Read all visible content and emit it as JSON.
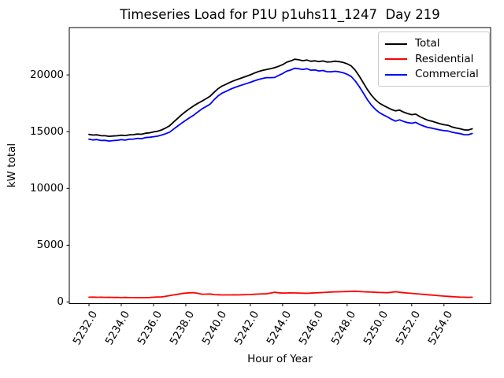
{
  "chart_data": {
    "type": "line",
    "title": "Timeseries Load for P1U p1uhs11_1247  Day 219",
    "xlabel": "Hour of Year",
    "ylabel": "kW total",
    "grid": false,
    "legend_position": "upper right",
    "xlim": [
      5230.78,
      5256.89
    ],
    "ylim": [
      -140,
      24170
    ],
    "xticks": {
      "values": [
        5232,
        5234,
        5236,
        5238,
        5240,
        5242,
        5244,
        5246,
        5248,
        5250,
        5252,
        5254
      ],
      "labels": [
        "5232.0",
        "5234.0",
        "5236.0",
        "5238.0",
        "5240.0",
        "5242.0",
        "5244.0",
        "5246.0",
        "5248.0",
        "5250.0",
        "5252.0",
        "5254.0"
      ]
    },
    "yticks": {
      "values": [
        0,
        5000,
        10000,
        15000,
        20000
      ],
      "labels": [
        "0",
        "5000",
        "10000",
        "15000",
        "20000"
      ]
    },
    "x": [
      5232,
      5232.25,
      5232.5,
      5232.75,
      5233,
      5233.25,
      5233.5,
      5233.75,
      5234,
      5234.25,
      5234.5,
      5234.75,
      5235,
      5235.25,
      5235.5,
      5235.75,
      5236,
      5236.25,
      5236.5,
      5236.75,
      5237,
      5237.25,
      5237.5,
      5237.75,
      5238,
      5238.25,
      5238.5,
      5238.75,
      5239,
      5239.25,
      5239.5,
      5239.75,
      5240,
      5240.25,
      5240.5,
      5240.75,
      5241,
      5241.25,
      5241.5,
      5241.75,
      5242,
      5242.25,
      5242.5,
      5242.75,
      5243,
      5243.25,
      5243.5,
      5243.75,
      5244,
      5244.25,
      5244.5,
      5244.75,
      5245,
      5245.25,
      5245.5,
      5245.75,
      5246,
      5246.25,
      5246.5,
      5246.75,
      5247,
      5247.25,
      5247.5,
      5247.75,
      5248,
      5248.25,
      5248.5,
      5248.75,
      5249,
      5249.25,
      5249.5,
      5249.75,
      5250,
      5250.25,
      5250.5,
      5250.75,
      5251,
      5251.25,
      5251.5,
      5251.75,
      5252,
      5252.25,
      5252.5,
      5252.75,
      5253,
      5253.25,
      5253.5,
      5253.75,
      5254,
      5254.25,
      5254.5,
      5254.75,
      5255,
      5255.25,
      5255.5,
      5255.75
    ],
    "series": [
      {
        "name": "Total",
        "color": "#000000",
        "values": [
          14760,
          14700,
          14720,
          14650,
          14640,
          14590,
          14620,
          14640,
          14690,
          14660,
          14720,
          14740,
          14790,
          14770,
          14860,
          14900,
          14980,
          15040,
          15150,
          15320,
          15520,
          15860,
          16180,
          16500,
          16780,
          17050,
          17290,
          17500,
          17690,
          17900,
          18120,
          18460,
          18790,
          19020,
          19180,
          19360,
          19500,
          19630,
          19760,
          19880,
          20010,
          20160,
          20290,
          20400,
          20480,
          20550,
          20630,
          20760,
          20900,
          21120,
          21230,
          21380,
          21330,
          21250,
          21310,
          21200,
          21240,
          21170,
          21230,
          21140,
          21150,
          21210,
          21170,
          21100,
          20980,
          20790,
          20420,
          19900,
          19310,
          18710,
          18210,
          17820,
          17510,
          17310,
          17120,
          16950,
          16830,
          16900,
          16720,
          16590,
          16500,
          16550,
          16330,
          16160,
          16010,
          15920,
          15810,
          15700,
          15610,
          15560,
          15420,
          15330,
          15260,
          15160,
          15140,
          15260
        ]
      },
      {
        "name": "Residential",
        "color": "#ff0000",
        "values": [
          420,
          430,
          415,
          425,
          405,
          415,
          400,
          405,
          390,
          400,
          385,
          390,
          378,
          388,
          382,
          395,
          420,
          435,
          450,
          500,
          560,
          620,
          680,
          740,
          780,
          810,
          825,
          760,
          685,
          690,
          705,
          650,
          640,
          625,
          620,
          625,
          630,
          625,
          640,
          650,
          660,
          680,
          700,
          710,
          720,
          790,
          860,
          810,
          780,
          795,
          800,
          795,
          790,
          775,
          760,
          780,
          800,
          820,
          840,
          860,
          880,
          890,
          900,
          910,
          920,
          935,
          950,
          925,
          900,
          885,
          870,
          855,
          840,
          830,
          820,
          860,
          900,
          860,
          820,
          790,
          760,
          730,
          700,
          670,
          640,
          610,
          580,
          550,
          520,
          495,
          470,
          450,
          430,
          420,
          410,
          420
        ]
      },
      {
        "name": "Commercial",
        "color": "#0000ff",
        "values": [
          14340,
          14270,
          14305,
          14225,
          14235,
          14175,
          14220,
          14235,
          14300,
          14260,
          14335,
          14350,
          14412,
          14382,
          14478,
          14505,
          14560,
          14605,
          14700,
          14820,
          14960,
          15240,
          15500,
          15760,
          16000,
          16240,
          16465,
          16740,
          17005,
          17210,
          17415,
          17810,
          18150,
          18395,
          18560,
          18735,
          18870,
          19005,
          19120,
          19230,
          19350,
          19480,
          19590,
          19690,
          19760,
          19760,
          19770,
          19950,
          20120,
          20325,
          20430,
          20585,
          20540,
          20475,
          20550,
          20420,
          20440,
          20350,
          20390,
          20280,
          20270,
          20320,
          20270,
          20190,
          20060,
          19855,
          19470,
          18975,
          18410,
          17825,
          17340,
          16965,
          16670,
          16480,
          16300,
          16090,
          15930,
          16040,
          15900,
          15800,
          15740,
          15820,
          15630,
          15490,
          15370,
          15310,
          15230,
          15150,
          15090,
          15065,
          14950,
          14880,
          14830,
          14740,
          14730,
          14840
        ]
      }
    ]
  }
}
